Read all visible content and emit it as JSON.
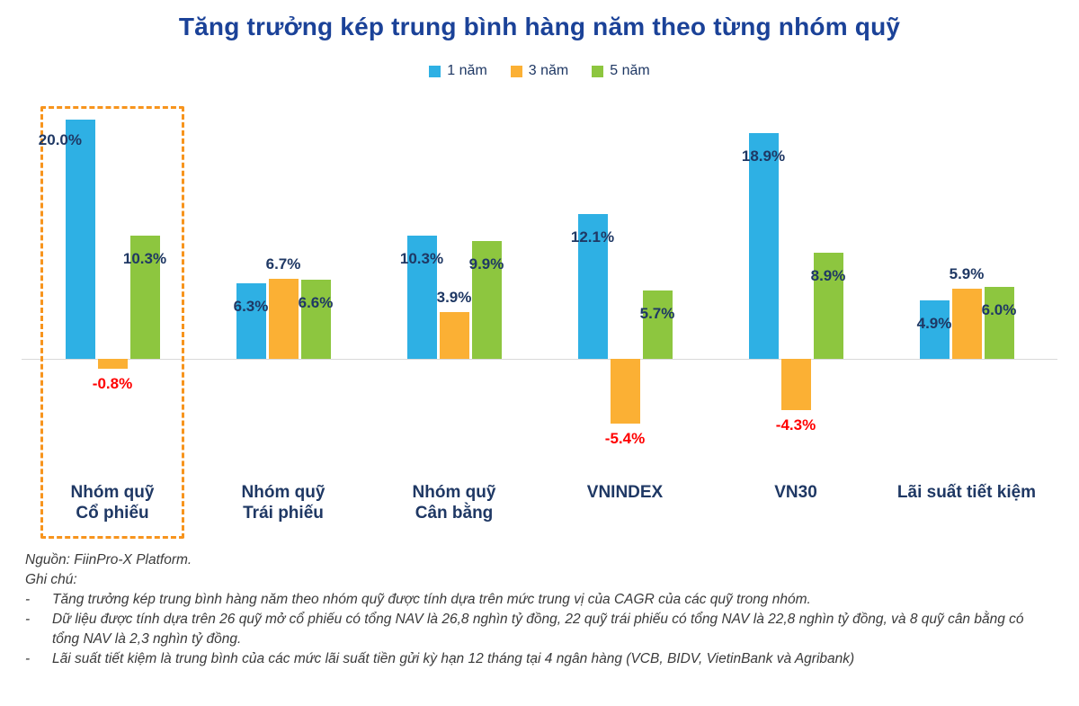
{
  "chart_data": {
    "type": "bar",
    "title": "Tăng trưởng kép trung bình hàng năm theo từng nhóm quỹ",
    "categories": [
      "Nhóm quỹ\nCổ phiếu",
      "Nhóm quỹ\nTrái phiếu",
      "Nhóm quỹ\nCân bằng",
      "VNINDEX",
      "VN30",
      "Lãi suất tiết kiệm"
    ],
    "series": [
      {
        "name": "1 năm",
        "color": "#2eb0e4",
        "values": [
          20.0,
          6.3,
          10.3,
          12.1,
          18.9,
          4.9
        ]
      },
      {
        "name": "3 năm",
        "color": "#fbb034",
        "values": [
          -0.8,
          6.7,
          3.9,
          -5.4,
          -4.3,
          5.9
        ]
      },
      {
        "name": "5 năm",
        "color": "#8dc63f",
        "values": [
          10.3,
          6.6,
          9.9,
          5.7,
          8.9,
          6.0
        ]
      }
    ],
    "value_format": "one_decimal_percent",
    "ylim": [
      -8,
      22
    ],
    "grid": false,
    "legend_position": "top",
    "label_colors": {
      "positive": "#1f3864",
      "negative": "#ff0000"
    },
    "highlight_box": {
      "category": "Nhóm quỹ Cổ phiếu",
      "border_color": "#f7941d",
      "style": "dashed"
    }
  },
  "notes": {
    "source": "Nguồn: FiinPro-X Platform.",
    "heading": "Ghi chú:",
    "bullet_marker": "-",
    "items": [
      "Tăng trưởng kép trung bình hàng năm theo nhóm quỹ được tính dựa trên mức trung vị của CAGR của các quỹ trong nhóm.",
      "Dữ liệu được tính dựa trên 26 quỹ mở cổ phiếu có tổng NAV là 26,8 nghìn tỷ đồng, 22 quỹ trái phiếu có tổng NAV là 22,8 nghìn tỷ đồng, và 8 quỹ cân bằng có tổng NAV là 2,3 nghìn tỷ đồng.",
      "Lãi suất tiết kiệm là trung bình của các mức lãi suất tiền gửi kỳ hạn 12 tháng tại 4 ngân hàng (VCB, BIDV, VietinBank và Agribank)"
    ]
  }
}
